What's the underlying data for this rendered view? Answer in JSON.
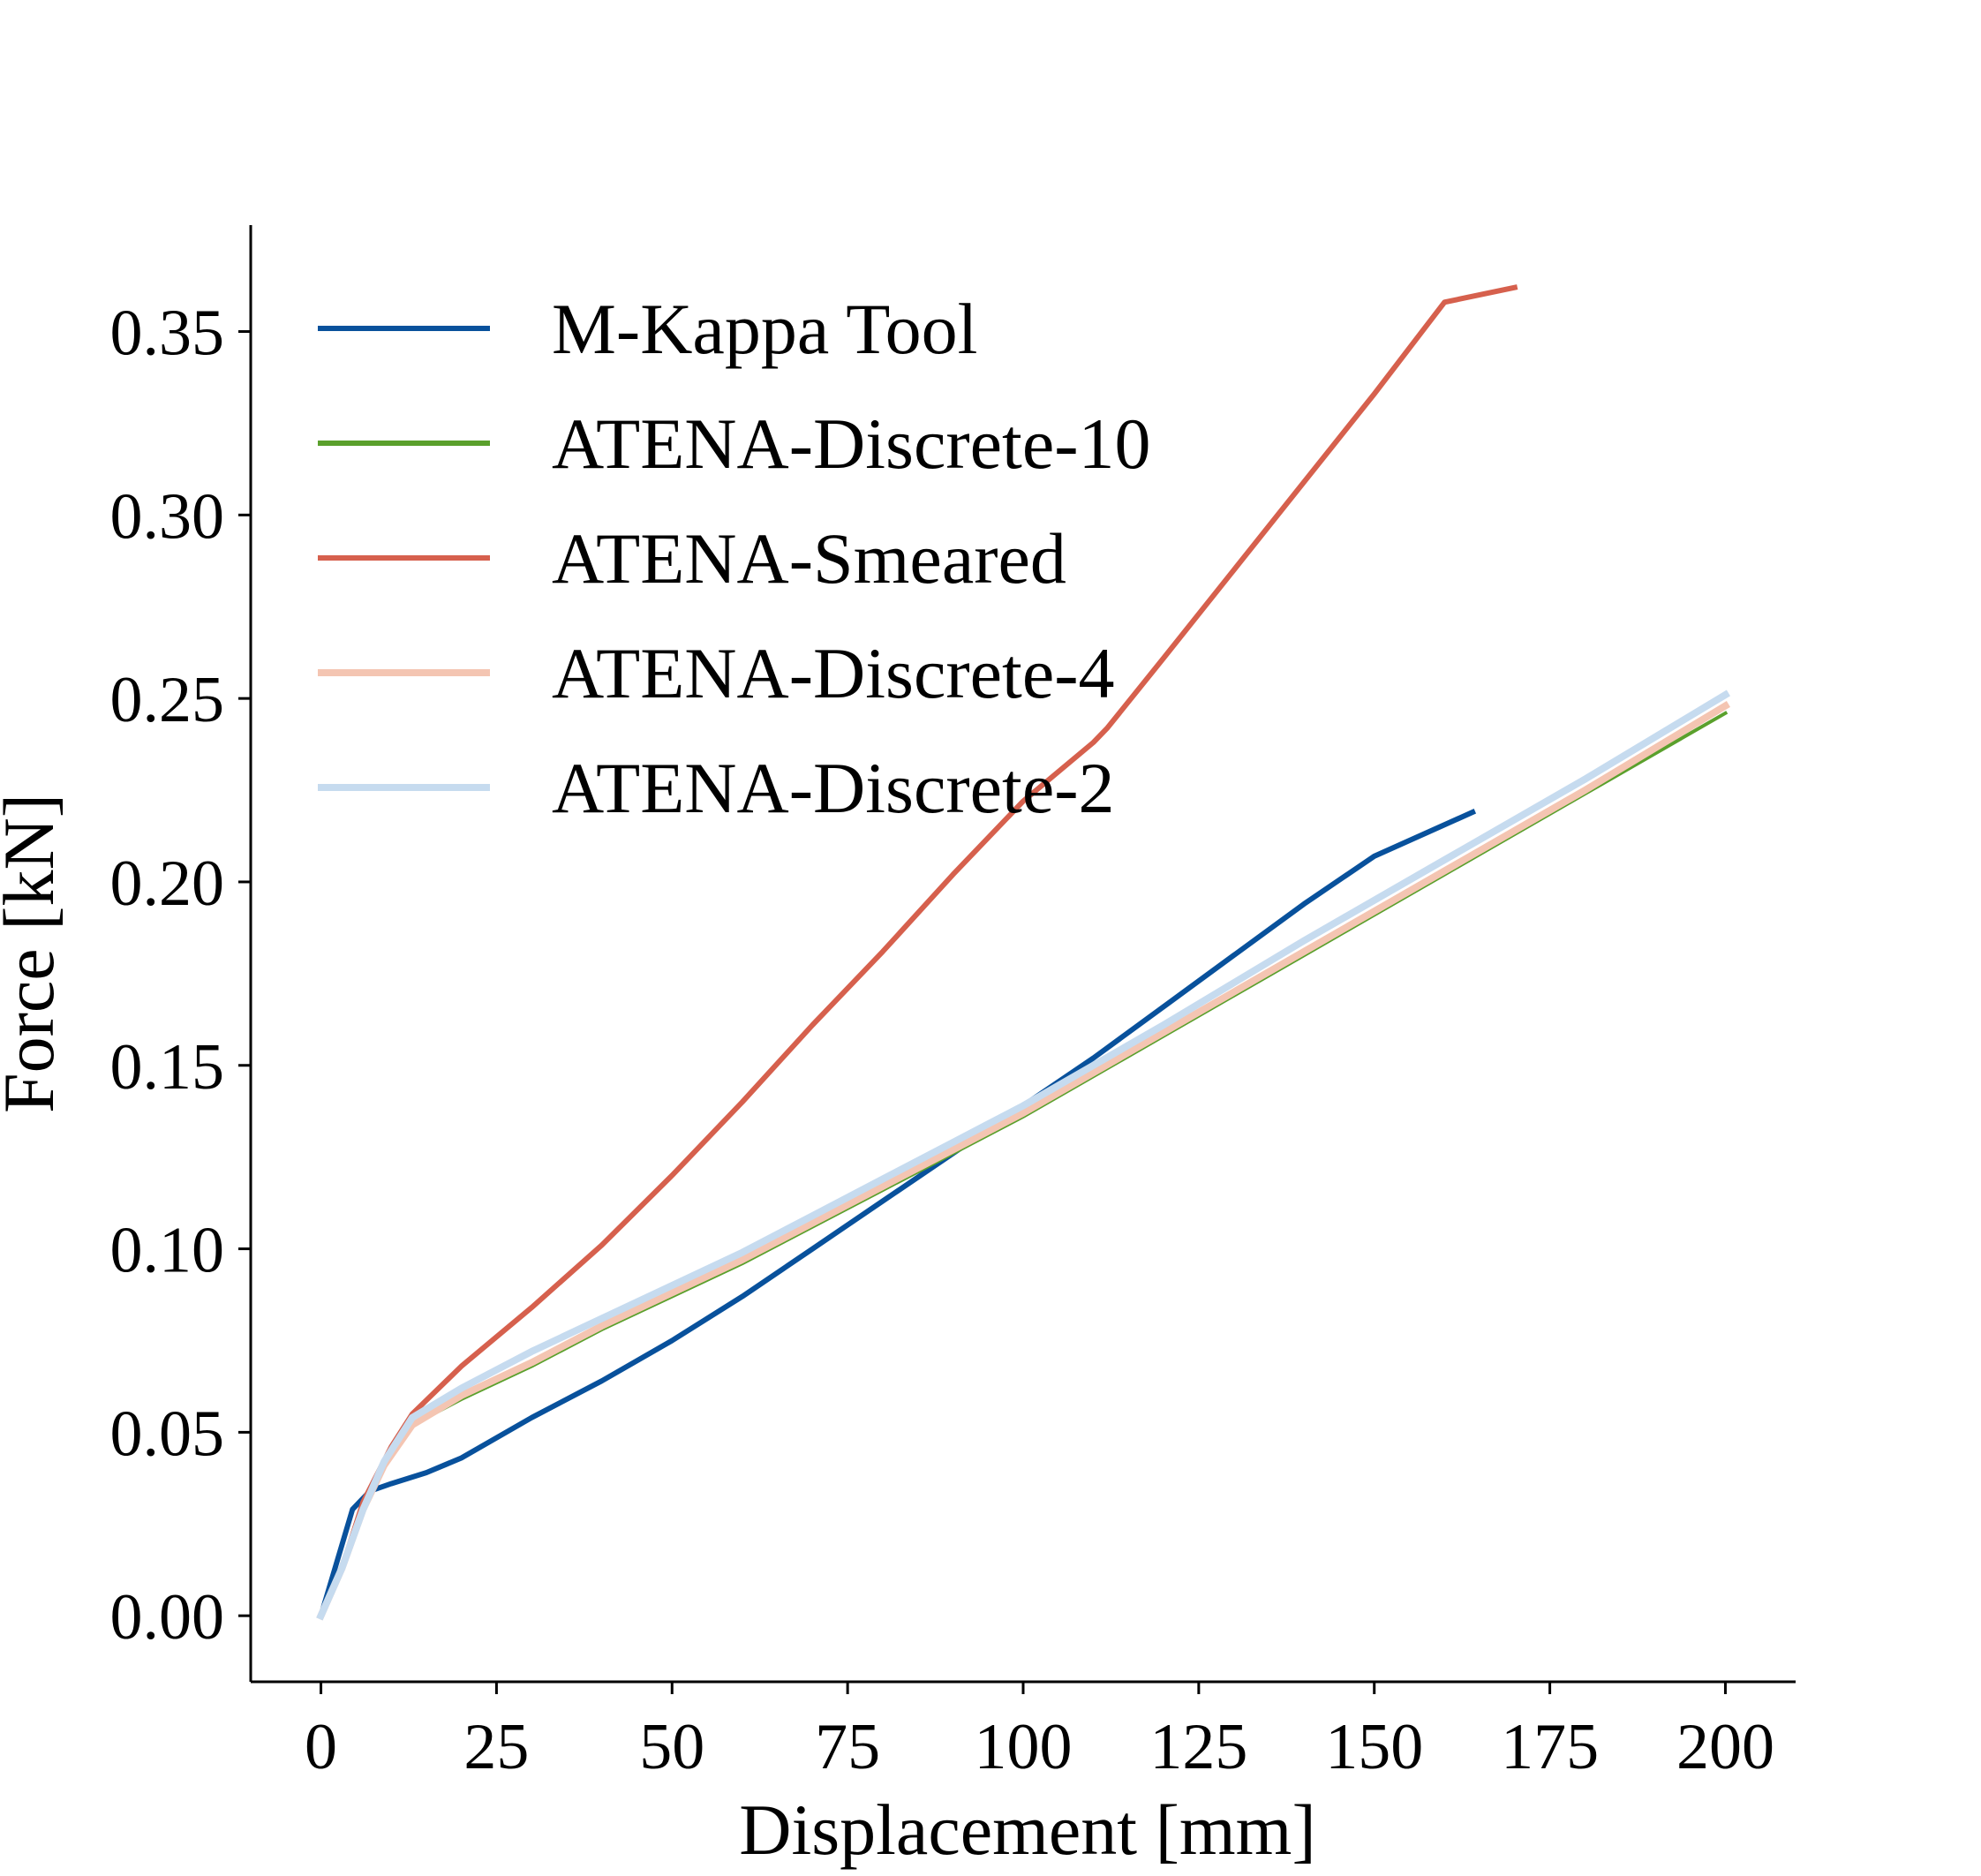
{
  "chart_data": {
    "type": "line",
    "title": "",
    "xlabel": "Displacement [mm]",
    "ylabel": "Force [kN]",
    "xlim": [
      -10,
      210
    ],
    "ylim": [
      -0.018,
      0.379
    ],
    "xticks": [
      "0",
      "25",
      "50",
      "75",
      "100",
      "125",
      "150",
      "175",
      "200"
    ],
    "xtick_values": [
      0,
      25,
      50,
      75,
      100,
      125,
      150,
      175,
      200
    ],
    "yticks": [
      "0.00",
      "0.05",
      "0.10",
      "0.15",
      "0.20",
      "0.25",
      "0.30",
      "0.35"
    ],
    "ytick_values": [
      0.0,
      0.05,
      0.1,
      0.15,
      0.2,
      0.25,
      0.3,
      0.35
    ],
    "grid": false,
    "legend_position": "top-left",
    "series": [
      {
        "name": "M-Kappa Tool",
        "color": "#08519c",
        "width": 3,
        "x": [
          0,
          4.5,
          7,
          10,
          15,
          20,
          30,
          40,
          50,
          60,
          70,
          80,
          90,
          100,
          110,
          120,
          130,
          140,
          150,
          164
        ],
        "y": [
          0,
          0.029,
          0.034,
          0.036,
          0.039,
          0.043,
          0.054,
          0.064,
          0.075,
          0.087,
          0.1,
          0.113,
          0.126,
          0.139,
          0.152,
          0.166,
          0.18,
          0.194,
          0.207,
          0.219
        ]
      },
      {
        "name": "ATENA-Discrete-10",
        "color": "#5aa02c",
        "width": 2,
        "x": [
          0,
          3,
          6,
          9,
          13,
          20,
          30,
          40,
          50,
          60,
          70,
          80,
          90,
          100,
          120,
          140,
          160,
          180,
          200
        ],
        "y": [
          0,
          0.013,
          0.029,
          0.041,
          0.052,
          0.059,
          0.068,
          0.078,
          0.087,
          0.096,
          0.106,
          0.116,
          0.126,
          0.136,
          0.158,
          0.18,
          0.202,
          0.224,
          0.246
        ]
      },
      {
        "name": "ATENA-Smeared",
        "color": "#d6604d",
        "width": 3,
        "x": [
          0,
          3,
          6,
          10,
          13,
          20,
          25,
          30,
          40,
          50,
          60,
          70,
          80,
          90,
          100,
          110,
          112,
          120,
          130,
          140,
          150,
          160,
          170
        ],
        "y": [
          0,
          0.013,
          0.031,
          0.046,
          0.055,
          0.068,
          0.076,
          0.084,
          0.101,
          0.12,
          0.14,
          0.161,
          0.181,
          0.202,
          0.222,
          0.238,
          0.242,
          0.261,
          0.285,
          0.309,
          0.333,
          0.358,
          0.362
        ]
      },
      {
        "name": "ATENA-Discrete-4",
        "color": "#f4c5b2",
        "width": 4,
        "x": [
          0,
          3,
          6,
          9,
          13,
          20,
          30,
          40,
          50,
          60,
          70,
          80,
          90,
          100,
          120,
          140,
          160,
          180,
          200
        ],
        "y": [
          0,
          0.013,
          0.029,
          0.041,
          0.052,
          0.06,
          0.069,
          0.079,
          0.088,
          0.097,
          0.107,
          0.117,
          0.127,
          0.137,
          0.159,
          0.181,
          0.203,
          0.225,
          0.248
        ]
      },
      {
        "name": "ATENA-Discrete-2",
        "color": "#c6dbef",
        "width": 4,
        "x": [
          0,
          3,
          6,
          9,
          13,
          20,
          30,
          40,
          50,
          60,
          70,
          80,
          90,
          100,
          120,
          140,
          160,
          180,
          200
        ],
        "y": [
          0,
          0.013,
          0.029,
          0.042,
          0.054,
          0.062,
          0.072,
          0.081,
          0.09,
          0.099,
          0.109,
          0.119,
          0.129,
          0.139,
          0.161,
          0.184,
          0.206,
          0.228,
          0.251
        ]
      }
    ]
  }
}
